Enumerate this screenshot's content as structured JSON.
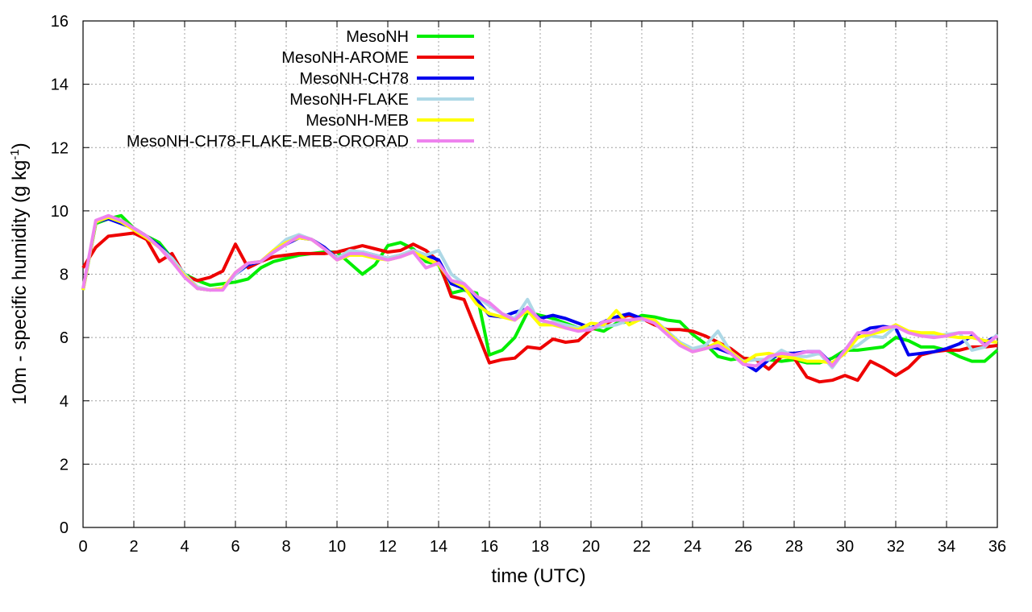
{
  "chart_data": {
    "type": "line",
    "xlabel": "time (UTC)",
    "ylabel_main": "10m - specific humidity (g kg",
    "ylabel_sup": "-1",
    "ylabel_end": ")",
    "xlim": [
      0,
      36
    ],
    "ylim": [
      0,
      16
    ],
    "xticks": [
      "0",
      "2",
      "4",
      "6",
      "8",
      "10",
      "12",
      "14",
      "16",
      "18",
      "20",
      "22",
      "24",
      "26",
      "28",
      "30",
      "32",
      "34",
      "36"
    ],
    "yticks": [
      "0",
      "2",
      "4",
      "6",
      "8",
      "10",
      "12",
      "14",
      "16"
    ],
    "grid": true,
    "legend_position": "top-left",
    "x": [
      0,
      0.5,
      1,
      1.5,
      2,
      2.5,
      3,
      3.5,
      4,
      4.5,
      5,
      5.5,
      6,
      6.5,
      7,
      7.5,
      8,
      8.5,
      9,
      9.5,
      10,
      10.5,
      11,
      11.5,
      12,
      12.5,
      13,
      13.5,
      14,
      14.5,
      15,
      15.5,
      16,
      16.5,
      17,
      17.5,
      18,
      18.5,
      19,
      19.5,
      20,
      20.5,
      21,
      21.5,
      22,
      22.5,
      23,
      23.5,
      24,
      24.5,
      25,
      25.5,
      26,
      26.5,
      27,
      27.5,
      28,
      28.5,
      29,
      29.5,
      30,
      30.5,
      31,
      31.5,
      32,
      32.5,
      33,
      33.5,
      34,
      34.5,
      35,
      35.5,
      36
    ],
    "series": [
      {
        "name": "MesoNH",
        "color": "#00ee00",
        "values": [
          7.5,
          9.6,
          9.75,
          9.85,
          9.45,
          9.2,
          9.0,
          8.5,
          8.0,
          7.8,
          7.65,
          7.7,
          7.75,
          7.85,
          8.2,
          8.4,
          8.5,
          8.6,
          8.65,
          8.7,
          8.7,
          8.35,
          8.0,
          8.3,
          8.9,
          9.0,
          8.8,
          8.4,
          8.3,
          7.4,
          7.5,
          7.4,
          5.45,
          5.6,
          6.0,
          6.8,
          6.7,
          6.6,
          6.45,
          6.3,
          6.3,
          6.2,
          6.45,
          6.5,
          6.7,
          6.65,
          6.55,
          6.5,
          6.1,
          5.8,
          5.4,
          5.3,
          5.35,
          5.3,
          5.3,
          5.25,
          5.3,
          5.2,
          5.2,
          5.35,
          5.6,
          5.6,
          5.65,
          5.7,
          6.0,
          5.9,
          5.7,
          5.7,
          5.6,
          5.4,
          5.25,
          5.25,
          5.6
        ]
      },
      {
        "name": "MesoNH-AROME",
        "color": "#ee0000",
        "values": [
          8.2,
          8.85,
          9.2,
          9.25,
          9.3,
          9.1,
          8.4,
          8.65,
          7.95,
          7.8,
          7.9,
          8.1,
          8.95,
          8.2,
          8.4,
          8.55,
          8.6,
          8.65,
          8.65,
          8.65,
          8.7,
          8.8,
          8.9,
          8.8,
          8.7,
          8.75,
          8.95,
          8.75,
          8.4,
          7.3,
          7.2,
          6.2,
          5.2,
          5.3,
          5.35,
          5.7,
          5.65,
          5.95,
          5.85,
          5.9,
          6.25,
          6.4,
          6.6,
          6.7,
          6.6,
          6.4,
          6.25,
          6.25,
          6.2,
          6.05,
          5.85,
          5.65,
          5.35,
          5.3,
          5.0,
          5.4,
          5.35,
          4.75,
          4.6,
          4.65,
          4.8,
          4.65,
          5.25,
          5.05,
          4.8,
          5.05,
          5.45,
          5.55,
          5.6,
          5.6,
          5.7,
          5.7,
          5.75
        ]
      },
      {
        "name": "MesoNH-CH78",
        "color": "#0000ee",
        "values": [
          7.5,
          9.65,
          9.75,
          9.6,
          9.45,
          9.2,
          8.9,
          8.5,
          8.0,
          7.55,
          7.5,
          7.55,
          8.0,
          8.3,
          8.4,
          8.7,
          8.95,
          9.15,
          9.1,
          8.85,
          8.5,
          8.7,
          8.7,
          8.6,
          8.5,
          8.6,
          8.75,
          8.6,
          8.45,
          7.7,
          7.55,
          7.2,
          6.7,
          6.65,
          6.8,
          6.9,
          6.6,
          6.7,
          6.6,
          6.45,
          6.3,
          6.5,
          6.65,
          6.75,
          6.6,
          6.5,
          6.2,
          5.8,
          5.6,
          5.75,
          5.65,
          5.5,
          5.2,
          4.95,
          5.3,
          5.5,
          5.5,
          5.55,
          5.55,
          5.15,
          5.6,
          6.1,
          6.3,
          6.35,
          6.3,
          5.45,
          5.5,
          5.55,
          5.65,
          5.8,
          6.05,
          5.85,
          6.05
        ]
      },
      {
        "name": "MesoNH-FLAKE",
        "color": "#add8e6",
        "values": [
          7.5,
          9.65,
          9.8,
          9.7,
          9.4,
          9.2,
          8.85,
          8.5,
          8.0,
          7.6,
          7.5,
          7.55,
          8.0,
          8.35,
          8.4,
          8.75,
          9.1,
          9.25,
          9.1,
          8.8,
          8.5,
          8.75,
          8.7,
          8.6,
          8.5,
          8.6,
          8.75,
          8.6,
          8.75,
          8.0,
          7.7,
          7.3,
          7.0,
          6.75,
          6.6,
          7.2,
          6.4,
          6.5,
          6.4,
          6.3,
          6.3,
          6.35,
          6.4,
          6.55,
          6.55,
          6.55,
          6.2,
          5.85,
          5.65,
          5.75,
          6.2,
          5.55,
          5.25,
          5.3,
          5.3,
          5.6,
          5.4,
          5.4,
          5.5,
          5.05,
          5.6,
          5.75,
          6.05,
          6.0,
          6.35,
          6.2,
          6.1,
          6.05,
          6.1,
          6.15,
          5.6,
          5.7,
          6.1
        ]
      },
      {
        "name": "MesoNH-MEB",
        "color": "#ffff00",
        "values": [
          7.5,
          9.65,
          9.8,
          9.65,
          9.4,
          9.15,
          8.85,
          8.4,
          7.95,
          7.55,
          7.5,
          7.55,
          8.05,
          8.35,
          8.4,
          8.75,
          9.0,
          9.15,
          9.1,
          8.8,
          8.45,
          8.6,
          8.6,
          8.5,
          8.45,
          8.55,
          8.7,
          8.5,
          8.3,
          7.8,
          7.6,
          7.05,
          6.75,
          6.65,
          6.55,
          6.85,
          6.4,
          6.4,
          6.3,
          6.25,
          6.45,
          6.4,
          6.85,
          6.4,
          6.6,
          6.55,
          6.15,
          5.8,
          5.55,
          5.65,
          5.85,
          5.55,
          5.2,
          5.45,
          5.5,
          5.4,
          5.35,
          5.25,
          5.25,
          5.2,
          5.5,
          6.0,
          6.1,
          6.2,
          6.4,
          6.2,
          6.15,
          6.15,
          6.05,
          6.0,
          6.0,
          5.9,
          5.85
        ]
      },
      {
        "name": "MesoNH-CH78-FLAKE-MEB-ORORAD",
        "color": "#ee82ee",
        "values": [
          7.55,
          9.7,
          9.85,
          9.7,
          9.45,
          9.2,
          8.85,
          8.4,
          7.9,
          7.55,
          7.5,
          7.5,
          8.05,
          8.35,
          8.4,
          8.7,
          8.95,
          9.2,
          9.1,
          8.8,
          8.45,
          8.65,
          8.65,
          8.55,
          8.45,
          8.55,
          8.7,
          8.2,
          8.35,
          7.8,
          7.7,
          7.3,
          7.1,
          6.75,
          6.55,
          6.95,
          6.55,
          6.45,
          6.3,
          6.2,
          6.25,
          6.5,
          6.55,
          6.55,
          6.6,
          6.45,
          6.1,
          5.75,
          5.55,
          5.65,
          5.75,
          5.5,
          5.15,
          5.1,
          5.4,
          5.5,
          5.45,
          5.55,
          5.55,
          5.1,
          5.6,
          6.15,
          6.15,
          6.3,
          6.35,
          6.15,
          6.05,
          6.0,
          6.05,
          6.15,
          6.15,
          5.75,
          6.05
        ]
      }
    ]
  }
}
